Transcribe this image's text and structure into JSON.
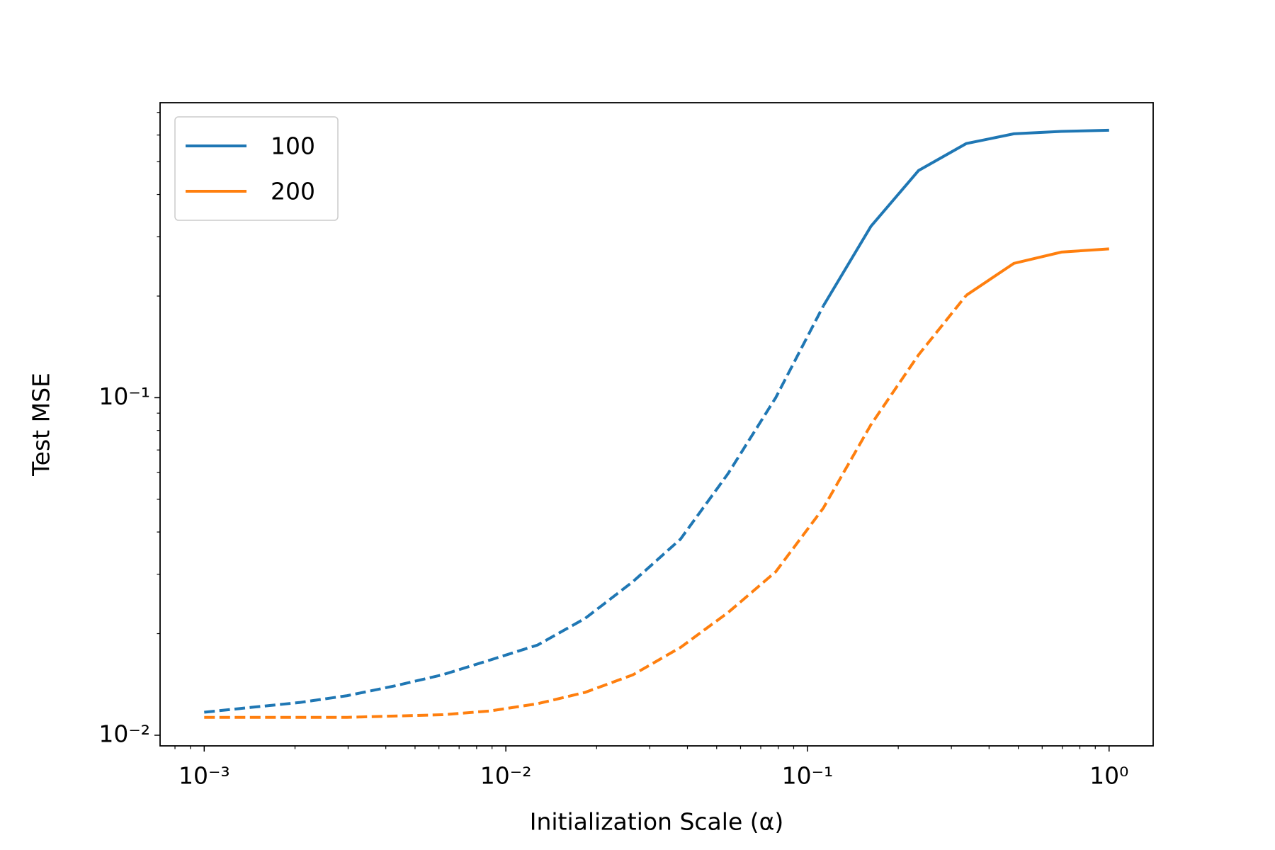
{
  "chart_data": {
    "type": "line",
    "xlabel": "Initialization Scale (α)",
    "ylabel": "Test MSE",
    "xscale": "log",
    "yscale": "log",
    "legend": "upper left",
    "x": [
      0.001,
      0.00144,
      0.00207,
      0.00298,
      0.00428,
      0.00616,
      0.00886,
      0.01274,
      0.01833,
      0.02637,
      0.03793,
      0.05456,
      0.07848,
      0.11288,
      0.16238,
      0.23357,
      0.33598,
      0.48329,
      0.69519,
      1.0
    ],
    "series": [
      {
        "name": "100",
        "color": "#1f77b4",
        "solid_from_index": 13,
        "values": [
          0.0117,
          0.0121,
          0.0125,
          0.0131,
          0.014,
          0.0151,
          0.0167,
          0.0185,
          0.0222,
          0.0285,
          0.0381,
          0.0596,
          0.1,
          0.187,
          0.322,
          0.471,
          0.566,
          0.605,
          0.615,
          0.62
        ]
      },
      {
        "name": "200",
        "color": "#ff7f0e",
        "solid_from_index": 16,
        "values": [
          0.0113,
          0.0113,
          0.0113,
          0.0113,
          0.0114,
          0.0115,
          0.0118,
          0.0124,
          0.0134,
          0.0151,
          0.0182,
          0.0231,
          0.0305,
          0.0471,
          0.0832,
          0.134,
          0.201,
          0.25,
          0.27,
          0.276
        ]
      }
    ],
    "xlim": [
      0.000714,
      1.4
    ],
    "ylim": [
      0.0093,
      0.748
    ],
    "xticks": [
      {
        "value": 0.001,
        "label": "10⁻³"
      },
      {
        "value": 0.01,
        "label": "10⁻²"
      },
      {
        "value": 0.1,
        "label": "10⁻¹"
      },
      {
        "value": 1,
        "label": "10⁰"
      }
    ],
    "yticks": [
      {
        "value": 0.01,
        "label": "10⁻²"
      },
      {
        "value": 0.1,
        "label": "10⁻¹"
      }
    ],
    "xminorticks": [
      0.0008,
      0.0009,
      0.002,
      0.003,
      0.004,
      0.005,
      0.006,
      0.007,
      0.008,
      0.009,
      0.02,
      0.03,
      0.04,
      0.05,
      0.06,
      0.07,
      0.08,
      0.09,
      0.2,
      0.3,
      0.4,
      0.5,
      0.6,
      0.7,
      0.8,
      0.9
    ],
    "yminorticks": [
      0.02,
      0.03,
      0.04,
      0.05,
      0.06,
      0.07,
      0.08,
      0.09,
      0.2,
      0.3,
      0.4,
      0.5,
      0.6,
      0.7
    ]
  }
}
